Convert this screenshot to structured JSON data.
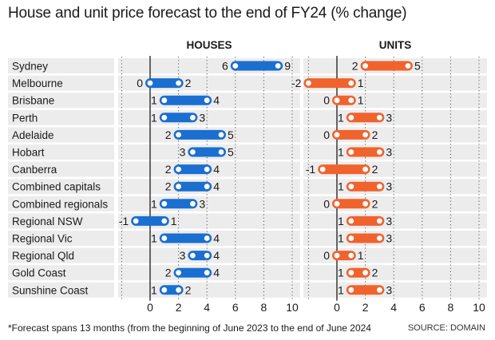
{
  "title": "House and unit price forecast to the end of FY24 (% change)",
  "footnote": "*Forecast spans 13 months (from the beginning of June 2023 to the end of June 2024",
  "source": "SOURCE: DOMAIN",
  "colors": {
    "houses": "#1a6fd0",
    "units": "#f0632d",
    "row_shade": "#ececec"
  },
  "chart_data": [
    {
      "type": "range-bar",
      "panel": "HOUSES",
      "xlim": [
        -2,
        10
      ],
      "xticks": [
        0,
        2,
        4,
        6,
        8,
        10
      ],
      "grid": true,
      "categories": [
        "Sydney",
        "Melbourne",
        "Brisbane",
        "Perth",
        "Adelaide",
        "Hobart",
        "Canberra",
        "Combined capitals",
        "Combined regionals",
        "Regional NSW",
        "Regional Vic",
        "Regional Qld",
        "Gold Coast",
        "Sunshine Coast"
      ],
      "low": [
        6,
        0,
        1,
        1,
        2,
        3,
        2,
        2,
        1,
        -1,
        1,
        3,
        2,
        1
      ],
      "high": [
        9,
        2,
        4,
        3,
        5,
        5,
        4,
        4,
        3,
        1,
        4,
        4,
        4,
        2
      ]
    },
    {
      "type": "range-bar",
      "panel": "UNITS",
      "xlim": [
        -2,
        10
      ],
      "xticks": [
        0,
        2,
        4,
        6,
        8,
        10
      ],
      "grid": true,
      "categories": [
        "Sydney",
        "Melbourne",
        "Brisbane",
        "Perth",
        "Adelaide",
        "Hobart",
        "Canberra",
        "Combined capitals",
        "Combined regionals",
        "Regional NSW",
        "Regional Vic",
        "Regional Qld",
        "Gold Coast",
        "Sunshine Coast"
      ],
      "low": [
        2,
        -2,
        0,
        1,
        0,
        1,
        -1,
        1,
        0,
        1,
        1,
        0,
        1,
        1
      ],
      "high": [
        5,
        1,
        1,
        3,
        2,
        3,
        2,
        3,
        2,
        3,
        3,
        1,
        2,
        3
      ]
    }
  ]
}
